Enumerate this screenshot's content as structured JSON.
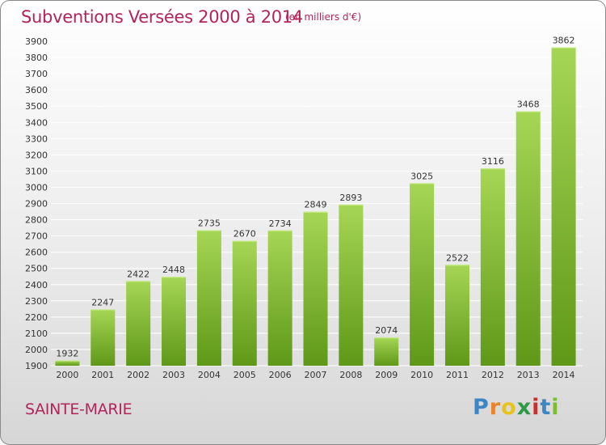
{
  "title": "Subventions Versées 2000 à 2014",
  "subtitle": "(en milliers d'€)",
  "location": "SAINTE-MARIE",
  "logo": {
    "text": "Proxiti",
    "letters": [
      "P",
      "r",
      "o",
      "x",
      "i",
      "t",
      "i"
    ],
    "colors": [
      "#3d86c6",
      "#e8842a",
      "#e8c21e",
      "#2e9a46",
      "#c8322e",
      "#3d86c6",
      "#7bbf2a"
    ]
  },
  "colors": {
    "title": "#b3245a",
    "bar_light": "#a6d655",
    "bar_dark": "#5f9818",
    "grid": "#ffffff"
  },
  "chart_data": {
    "type": "bar",
    "title": "Subventions Versées 2000 à 2014",
    "subtitle": "(en milliers d'€)",
    "categories": [
      "2000",
      "2001",
      "2002",
      "2003",
      "2004",
      "2005",
      "2006",
      "2007",
      "2008",
      "2009",
      "2010",
      "2011",
      "2012",
      "2013",
      "2014"
    ],
    "values": [
      1932,
      2247,
      2422,
      2448,
      2735,
      2670,
      2734,
      2849,
      2893,
      2074,
      3025,
      2522,
      3116,
      3468,
      3862
    ],
    "ylim": [
      1900,
      3900
    ],
    "yticks": [
      1900,
      2000,
      2100,
      2200,
      2300,
      2400,
      2500,
      2600,
      2700,
      2800,
      2900,
      3000,
      3100,
      3200,
      3300,
      3400,
      3500,
      3600,
      3700,
      3800,
      3900
    ],
    "grid": true,
    "data_labels": true
  }
}
